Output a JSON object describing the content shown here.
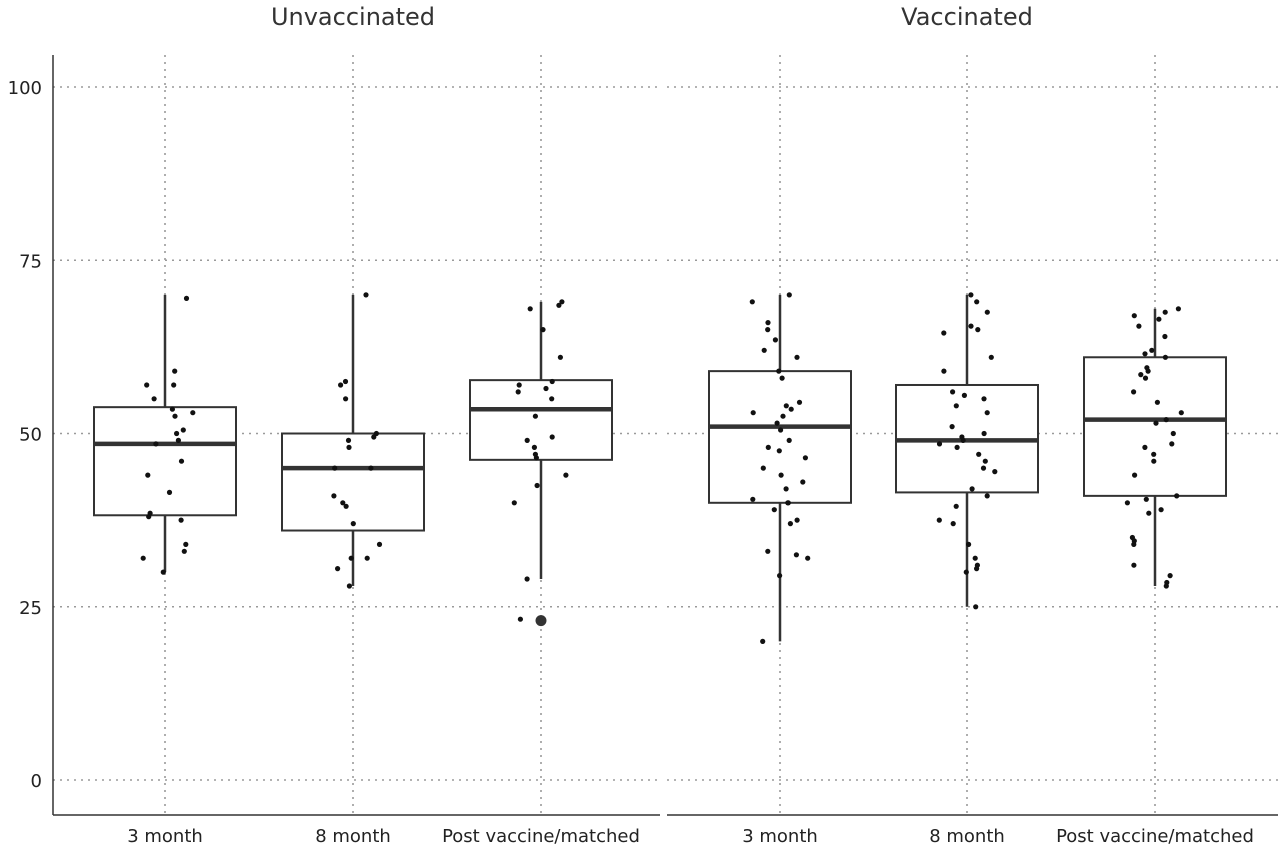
{
  "chart_data": {
    "type": "box",
    "title": "",
    "xlabel": "",
    "ylabel": "",
    "ylim": [
      -5,
      105
    ],
    "yticks": [
      0,
      25,
      50,
      75,
      100
    ],
    "grid": true,
    "categories": [
      "3 month",
      "8 month",
      "Post vaccine/matched"
    ],
    "panels": [
      {
        "name": "Unvaccinated",
        "boxes": [
          {
            "category": "3 month",
            "stats": {
              "whisker_low": 30,
              "q1": 38.2,
              "median": 48.5,
              "q3": 53.8,
              "whisker_high": 70
            },
            "outliers": [],
            "points": [
              57,
              55,
              53.5,
              53,
              52.5,
              59,
              57,
              69.5,
              50,
              50.5,
              49,
              48.5,
              46,
              44,
              41.5,
              38.5,
              38,
              37.5,
              34,
              33,
              32,
              30
            ]
          },
          {
            "category": "8 month",
            "stats": {
              "whisker_low": 28,
              "q1": 36,
              "median": 45,
              "q3": 50,
              "whisker_high": 70
            },
            "outliers": [],
            "points": [
              70,
              57.5,
              57,
              55,
              50,
              49.5,
              49,
              48,
              45,
              45,
              41,
              40,
              39.5,
              37,
              34,
              32,
              32,
              30.5,
              28
            ]
          },
          {
            "category": "Post vaccine/matched",
            "stats": {
              "whisker_low": 29,
              "q1": 46.2,
              "median": 53.5,
              "q3": 57.7,
              "whisker_high": 69
            },
            "outliers": [
              23
            ],
            "points": [
              69,
              68.5,
              68,
              65,
              61,
              57.5,
              57,
              56.5,
              56,
              55,
              52.5,
              49.5,
              49,
              48,
              47,
              46.5,
              44,
              42.5,
              40,
              29,
              23.2
            ]
          }
        ]
      },
      {
        "name": "Vaccinated",
        "boxes": [
          {
            "category": "3 month",
            "stats": {
              "whisker_low": 20,
              "q1": 40,
              "median": 51,
              "q3": 59,
              "whisker_high": 70
            },
            "outliers": [],
            "points": [
              70,
              69,
              66,
              65,
              63.5,
              62,
              61,
              59,
              58,
              54.5,
              54,
              53.5,
              53,
              52.5,
              51.5,
              50.5,
              49,
              48,
              47.5,
              46.5,
              45,
              44,
              43,
              42,
              40.5,
              40,
              40,
              39,
              37.5,
              37,
              33,
              32.5,
              32,
              29.5,
              20
            ]
          },
          {
            "category": "8 month",
            "stats": {
              "whisker_low": 25,
              "q1": 41.5,
              "median": 49,
              "q3": 57,
              "whisker_high": 70
            },
            "outliers": [],
            "points": [
              70,
              69,
              67.5,
              65.5,
              65,
              64.5,
              61,
              59,
              56,
              55.5,
              55,
              54,
              53,
              51,
              50,
              49.5,
              49,
              48.5,
              48,
              47,
              46,
              45,
              44.5,
              42,
              41,
              39.5,
              37.5,
              37,
              34,
              32,
              31,
              30.5,
              30,
              25
            ]
          },
          {
            "category": "Post vaccine/matched",
            "stats": {
              "whisker_low": 28,
              "q1": 41,
              "median": 52,
              "q3": 61,
              "whisker_high": 68
            },
            "outliers": [],
            "points": [
              68,
              67.5,
              67,
              66.5,
              65.5,
              64,
              62,
              61.5,
              61,
              59.5,
              59,
              58.5,
              58,
              56,
              54.5,
              53,
              52,
              51.5,
              50,
              48.5,
              48,
              47,
              46,
              44,
              41,
              40.5,
              40,
              39,
              38.5,
              35,
              34.5,
              34,
              31,
              29.5,
              28.5,
              28
            ]
          }
        ]
      }
    ]
  }
}
